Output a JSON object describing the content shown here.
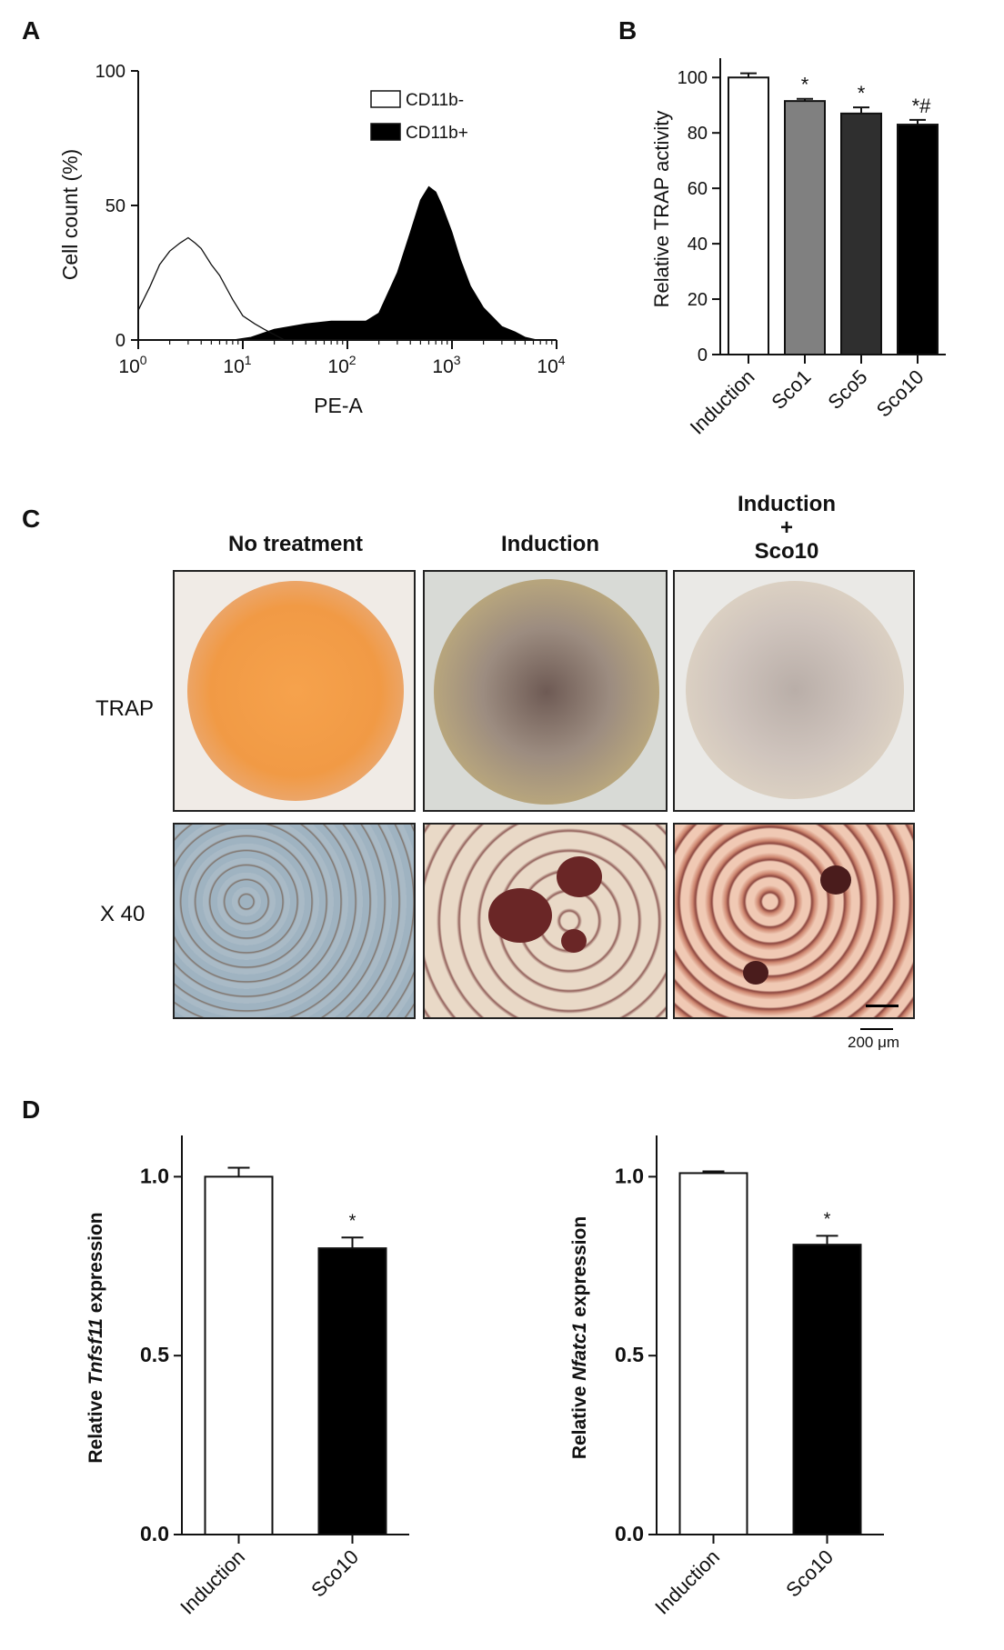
{
  "panels": {
    "A": "A",
    "B": "B",
    "C": "C",
    "D": "D"
  },
  "panel_c": {
    "columns": [
      "No treatment",
      "Induction",
      "Induction\n+\nSco10"
    ],
    "rows": [
      "TRAP",
      "X 40"
    ],
    "scale_bar": "200 μm"
  },
  "chart_data": [
    {
      "id": "A",
      "type": "area",
      "xlabel": "PE-A",
      "ylabel": "Cell count (%)",
      "xscale": "log",
      "xlim": [
        1,
        10000
      ],
      "ylim": [
        0,
        100
      ],
      "xticks": [
        {
          "base": "10",
          "exp": "0"
        },
        {
          "base": "10",
          "exp": "1"
        },
        {
          "base": "10",
          "exp": "2"
        },
        {
          "base": "10",
          "exp": "3"
        },
        {
          "base": "10",
          "exp": "4"
        }
      ],
      "yticks": [
        "0",
        "50",
        "100"
      ],
      "legend_position": "top-right",
      "series": [
        {
          "name": "CD11b-",
          "fill": "#ffffff",
          "stroke": "#111111",
          "x": [
            1,
            1.3,
            1.6,
            2,
            2.5,
            3,
            3.5,
            4,
            5,
            6,
            8,
            10,
            13,
            16,
            20,
            25
          ],
          "y": [
            11,
            20,
            28,
            33,
            36,
            38,
            36,
            34,
            28,
            24,
            15,
            9,
            6,
            4,
            2,
            0
          ]
        },
        {
          "name": "CD11b+",
          "fill": "#000000",
          "stroke": "#000000",
          "x": [
            1,
            3,
            8,
            12,
            20,
            40,
            70,
            100,
            150,
            200,
            300,
            400,
            500,
            600,
            700,
            800,
            1000,
            1200,
            1500,
            2000,
            3000,
            4000,
            5000,
            6500
          ],
          "y": [
            0,
            0,
            0,
            1,
            4,
            6,
            7,
            7,
            7,
            10,
            25,
            40,
            52,
            57,
            55,
            50,
            40,
            30,
            20,
            12,
            5,
            3,
            1,
            0
          ]
        }
      ]
    },
    {
      "id": "B",
      "type": "bar",
      "ylabel": "Relative TRAP activity",
      "ylim": [
        0,
        105
      ],
      "yticks": [
        "0",
        "20",
        "40",
        "60",
        "80",
        "100"
      ],
      "categories": [
        "Induction",
        "Sco1",
        "Sco5",
        "Sco10"
      ],
      "values": [
        100,
        91.5,
        87,
        83
      ],
      "errors": [
        1.5,
        0.8,
        2.2,
        1.7
      ],
      "colors": [
        "#ffffff",
        "#808080",
        "#2f2f2f",
        "#000000"
      ],
      "annotations": [
        "",
        "*",
        "*",
        "*#"
      ]
    },
    {
      "id": "D1",
      "type": "bar",
      "ylabel_prefix": "Relative ",
      "ylabel_gene": "Tnfsf11",
      "ylabel_suffix": " expression",
      "ylim": [
        0,
        1.1
      ],
      "yticks": [
        "0.0",
        "0.5",
        "1.0"
      ],
      "categories": [
        "Induction",
        "Sco10"
      ],
      "values": [
        1.0,
        0.8
      ],
      "errors": [
        0.025,
        0.03
      ],
      "colors": [
        "#ffffff",
        "#000000"
      ],
      "annotations": [
        "",
        "*"
      ]
    },
    {
      "id": "D2",
      "type": "bar",
      "ylabel_prefix": "Relative ",
      "ylabel_gene": "Nfatc1",
      "ylabel_suffix": " expression",
      "ylim": [
        0,
        1.1
      ],
      "yticks": [
        "0.0",
        "0.5",
        "1.0"
      ],
      "categories": [
        "Induction",
        "Sco10"
      ],
      "values": [
        1.01,
        0.81
      ],
      "errors": [
        0.005,
        0.025
      ],
      "colors": [
        "#ffffff",
        "#000000"
      ],
      "annotations": [
        "",
        "*"
      ]
    }
  ]
}
